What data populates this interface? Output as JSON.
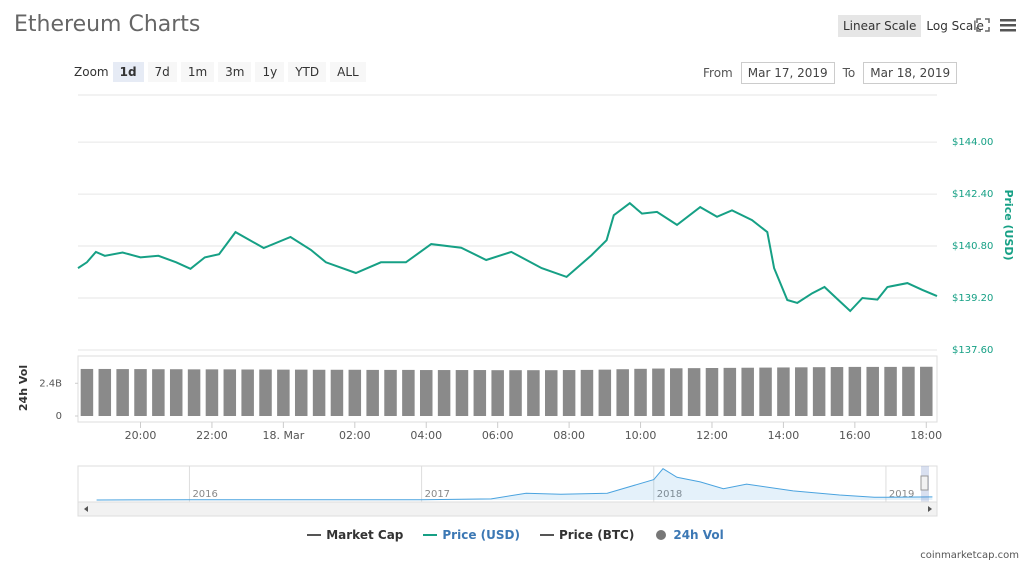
{
  "ui": {
    "title": "Ethereum Charts",
    "scale_buttons": [
      "Linear Scale",
      "Log Scale"
    ],
    "scale_selected": 0,
    "zoom_label": "Zoom",
    "zoom_buttons": [
      "1d",
      "7d",
      "1m",
      "3m",
      "1y",
      "YTD",
      "ALL"
    ],
    "zoom_selected": 0,
    "from_label": "From",
    "from_date": "Mar 17, 2019",
    "to_label": "To",
    "to_date": "Mar 18, 2019",
    "legend": [
      {
        "name": "Market Cap",
        "color": "#555555",
        "active": false
      },
      {
        "name": "Price (USD)",
        "color": "#16a085",
        "active": true
      },
      {
        "name": "Price (BTC)",
        "color": "#555555",
        "active": false
      },
      {
        "name": "24h Vol",
        "color": "#777777",
        "active": true,
        "marker": "circle"
      }
    ],
    "credit": "coinmarketcap.com"
  },
  "chart_data": [
    {
      "type": "line",
      "y_label": "Price (USD)",
      "series": [
        {
          "name": "Price (USD)",
          "color": "#16a085",
          "x": [
            18.25,
            18.5,
            18.75,
            19.0,
            19.5,
            20.0,
            20.5,
            21.0,
            21.4,
            21.8,
            22.2,
            22.66,
            23.45,
            24.2,
            24.77,
            25.19,
            26.03,
            26.73,
            27.43,
            28.14,
            28.98,
            29.68,
            30.38,
            31.23,
            31.93,
            32.63,
            33.05,
            33.25,
            33.7,
            34.04,
            34.46,
            35.02,
            35.67,
            36.14,
            36.56,
            37.12,
            37.55,
            37.74,
            38.11,
            38.39,
            38.81,
            39.15,
            39.51,
            39.87,
            40.21,
            40.63,
            40.91,
            41.47,
            41.89,
            42.3
          ],
          "values": [
            140.12,
            140.3,
            140.62,
            140.5,
            140.6,
            140.45,
            140.5,
            140.3,
            140.1,
            140.45,
            140.55,
            141.23,
            140.74,
            141.08,
            140.68,
            140.3,
            139.97,
            140.3,
            140.3,
            140.86,
            140.75,
            140.37,
            140.62,
            140.12,
            139.85,
            140.52,
            140.98,
            141.75,
            142.12,
            141.8,
            141.85,
            141.45,
            142.0,
            141.7,
            141.9,
            141.6,
            141.23,
            140.12,
            139.14,
            139.05,
            139.35,
            139.54,
            139.17,
            138.8,
            139.2,
            139.15,
            139.54,
            139.66,
            139.45,
            139.26
          ]
        }
      ],
      "xlim": [
        18.25,
        42.3
      ],
      "xticks": [
        {
          "value": 20,
          "label": "20:00"
        },
        {
          "value": 22,
          "label": "22:00"
        },
        {
          "value": 24,
          "label": "18. Mar"
        },
        {
          "value": 26,
          "label": "02:00"
        },
        {
          "value": 28,
          "label": "04:00"
        },
        {
          "value": 30,
          "label": "06:00"
        },
        {
          "value": 32,
          "label": "08:00"
        },
        {
          "value": 34,
          "label": "10:00"
        },
        {
          "value": 36,
          "label": "12:00"
        },
        {
          "value": 38,
          "label": "14:00"
        },
        {
          "value": 40,
          "label": "16:00"
        },
        {
          "value": 42,
          "label": "18:00"
        }
      ],
      "ylim": [
        137.6,
        145.45
      ],
      "yticks": [
        {
          "value": 137.6,
          "label": "$137.60"
        },
        {
          "value": 139.2,
          "label": "$139.20"
        },
        {
          "value": 140.8,
          "label": "$140.80"
        },
        {
          "value": 142.4,
          "label": "$142.40"
        },
        {
          "value": 144,
          "label": "$144.00"
        }
      ],
      "grid": true
    },
    {
      "type": "bar",
      "y_label": "24h Vol",
      "color": "#8a8a8a",
      "xlim": [
        18.25,
        42.3
      ],
      "x": [
        18.5,
        19,
        19.5,
        20,
        20.5,
        21,
        21.5,
        22,
        22.5,
        23,
        23.5,
        24,
        24.5,
        25,
        25.5,
        26,
        26.5,
        27,
        27.5,
        28,
        28.5,
        29,
        29.5,
        30,
        30.5,
        31,
        31.5,
        32,
        32.5,
        33,
        33.5,
        34,
        34.5,
        35,
        35.5,
        36,
        36.5,
        37,
        37.5,
        38,
        38.5,
        39,
        39.5,
        40,
        40.5,
        41,
        41.5,
        42
      ],
      "values": [
        3450000000,
        3450000000,
        3440000000,
        3440000000,
        3430000000,
        3430000000,
        3420000000,
        3420000000,
        3420000000,
        3410000000,
        3410000000,
        3400000000,
        3400000000,
        3390000000,
        3390000000,
        3390000000,
        3380000000,
        3380000000,
        3380000000,
        3370000000,
        3370000000,
        3370000000,
        3370000000,
        3360000000,
        3360000000,
        3360000000,
        3360000000,
        3370000000,
        3380000000,
        3400000000,
        3430000000,
        3460000000,
        3480000000,
        3500000000,
        3510000000,
        3520000000,
        3530000000,
        3540000000,
        3550000000,
        3560000000,
        3570000000,
        3580000000,
        3590000000,
        3600000000,
        3600000000,
        3600000000,
        3610000000,
        3610000000
      ],
      "ylim": [
        0,
        4400000000
      ],
      "yticks": [
        0,
        {
          "value": 2400000000,
          "label": "2.4B"
        }
      ]
    },
    {
      "type": "area",
      "color": "#4aa3df",
      "x": [
        2015.6,
        2016.0,
        2016.5,
        2017.0,
        2017.3,
        2017.45,
        2017.6,
        2017.8,
        2018.0,
        2018.04,
        2018.1,
        2018.2,
        2018.3,
        2018.4,
        2018.6,
        2018.8,
        2018.95,
        2019.2
      ],
      "values": [
        1,
        8,
        12,
        8,
        50,
        300,
        250,
        300,
        900,
        1380,
        1000,
        800,
        500,
        700,
        400,
        220,
        120,
        138
      ],
      "xlim": [
        2015.52,
        2019.22
      ],
      "ylim": [
        0,
        1500
      ],
      "xticks": [
        2016,
        2017,
        2018,
        2019
      ]
    }
  ]
}
